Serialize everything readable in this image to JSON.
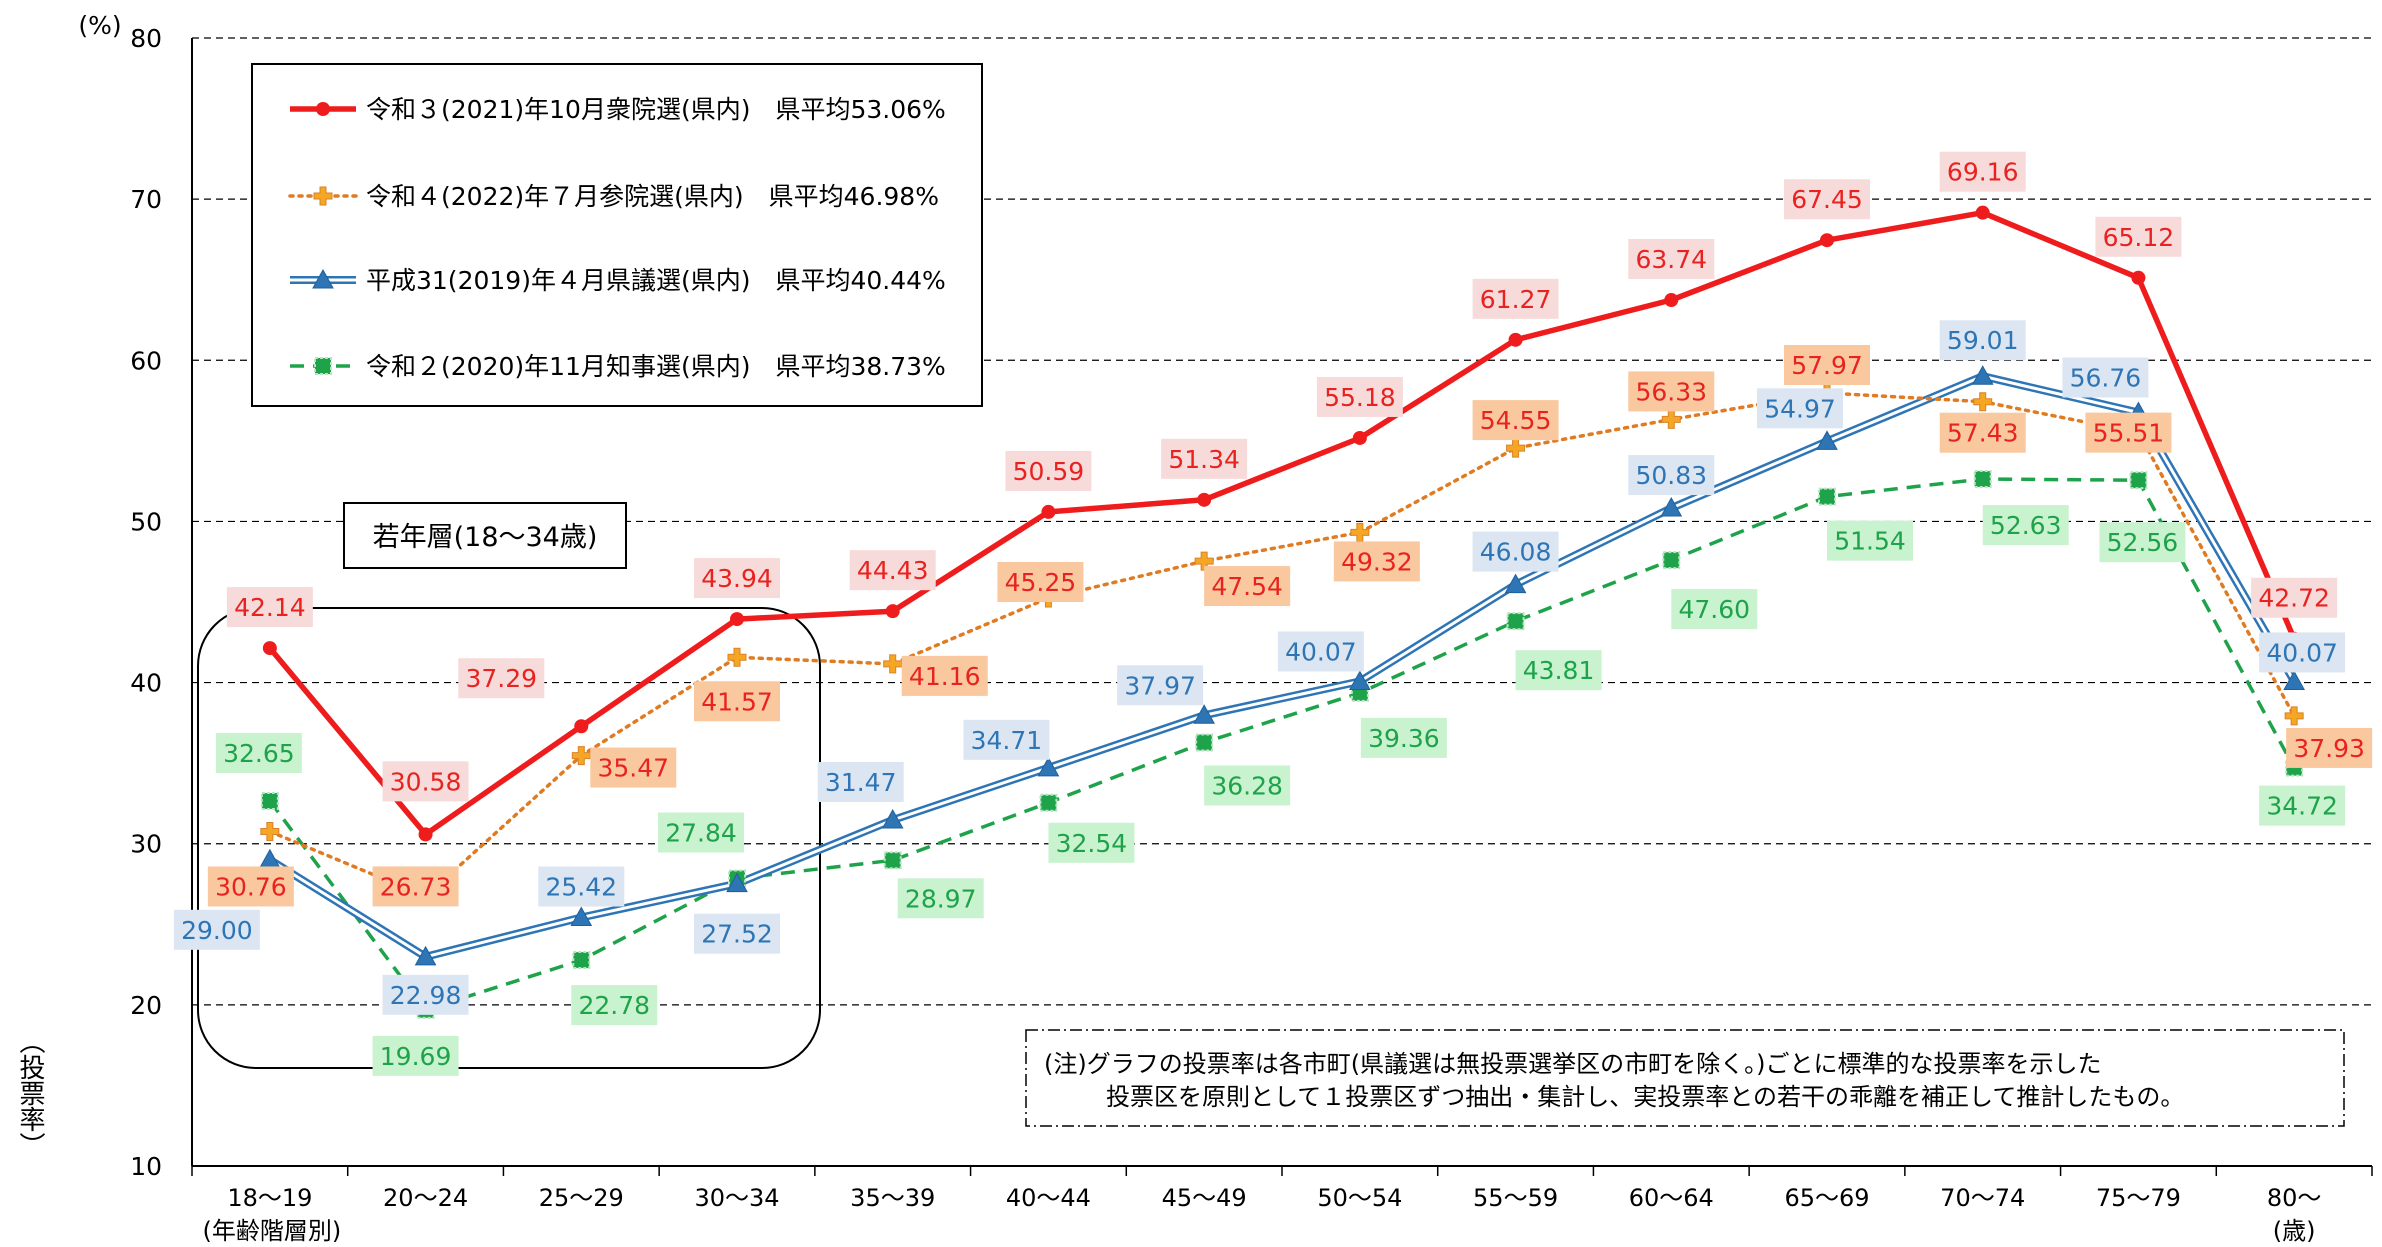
{
  "chart_data": {
    "type": "line",
    "categories": [
      "18〜19",
      "20〜24",
      "25〜29",
      "30〜34",
      "35〜39",
      "40〜44",
      "45〜49",
      "50〜54",
      "55〜59",
      "60〜64",
      "65〜69",
      "70〜74",
      "75〜79",
      "80〜"
    ],
    "x_note_first": "(年齢階層別)",
    "x_note_last": "(歳)",
    "y_unit": "(%)",
    "ylabel": "（投票率）",
    "ylim": [
      10,
      80
    ],
    "yticks": [
      10,
      20,
      30,
      40,
      50,
      60,
      70,
      80
    ],
    "grid": "dashed horizontal",
    "legend_position": "top-left",
    "series": [
      {
        "name": "令和３(2021)年10月衆院選(県内)　県平均53.06%",
        "color": "#ee1c1c",
        "label_color": "#e8231f",
        "label_bg": "#f7dada",
        "style": "solid-thick",
        "marker": "circle",
        "values": [
          42.14,
          30.58,
          37.29,
          43.94,
          44.43,
          50.59,
          51.34,
          55.18,
          61.27,
          63.74,
          67.45,
          69.16,
          65.12,
          42.72
        ],
        "labels": [
          "42.14",
          "30.58",
          "37.29",
          "43.94",
          "44.43",
          "50.59",
          "51.34",
          "55.18",
          "61.27",
          "63.74",
          "67.45",
          "69.16",
          "65.12",
          "42.72"
        ]
      },
      {
        "name": "令和４(2022)年７月参院選(県内)　県平均46.98%",
        "color": "#e07b22",
        "label_color": "#e8231f",
        "label_bg": "#f9c89e",
        "style": "dotted",
        "marker": "plus",
        "values": [
          30.76,
          26.73,
          35.47,
          41.57,
          41.16,
          45.25,
          47.54,
          49.32,
          54.55,
          56.33,
          57.97,
          57.43,
          55.51,
          37.93
        ],
        "labels": [
          "30.76",
          "26.73",
          "35.47",
          "41.57",
          "41.16",
          "45.25",
          "47.54",
          "49.32",
          "54.55",
          "56.33",
          "57.97",
          "57.43",
          "55.51",
          "37.93"
        ]
      },
      {
        "name": "平成31(2019)年４月県議選(県内)　県平均40.44%",
        "color": "#2e75b6",
        "label_color": "#2e75b6",
        "label_bg": "#dce6f2",
        "style": "double",
        "marker": "triangle",
        "values": [
          29.0,
          22.98,
          25.42,
          27.52,
          31.47,
          34.71,
          37.97,
          40.07,
          46.08,
          50.83,
          54.97,
          59.01,
          56.76,
          40.07
        ],
        "labels": [
          "29.00",
          "22.98",
          "25.42",
          "27.52",
          "31.47",
          "34.71",
          "37.97",
          "40.07",
          "46.08",
          "50.83",
          "54.97",
          "59.01",
          "56.76",
          "40.07"
        ]
      },
      {
        "name": "令和２(2020)年11月知事選(県内)　県平均38.73%",
        "color": "#1ea34a",
        "label_color": "#1ea34a",
        "label_bg": "#c9f2cf",
        "style": "dashed",
        "marker": "square",
        "values": [
          32.65,
          19.69,
          22.78,
          27.84,
          28.97,
          32.54,
          36.28,
          39.36,
          43.81,
          47.6,
          51.54,
          52.63,
          52.56,
          34.72
        ],
        "labels": [
          "32.65",
          "19.69",
          "22.78",
          "27.84",
          "28.97",
          "32.54",
          "36.28",
          "39.36",
          "43.81",
          "47.60",
          "51.54",
          "52.63",
          "52.56",
          "34.72"
        ]
      }
    ],
    "annotations": {
      "youth_box_label": "若年層(18〜34歳)",
      "note_line1": "(注)グラフの投票率は各市町(県議選は無投票選挙区の市町を除く。)ごとに標準的な投票率を示した",
      "note_line2": "投票区を原則として１投票区ずつ抽出・集計し、実投票率との若干の乖離を補正して推計したもの。"
    }
  }
}
